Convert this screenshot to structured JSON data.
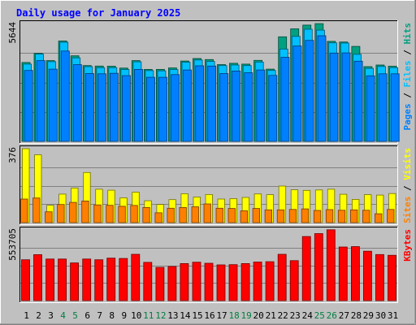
{
  "chart_data": {
    "type": "bar",
    "title": "Daily usage for January 2025",
    "categories": [
      "1",
      "2",
      "3",
      "4",
      "5",
      "6",
      "7",
      "8",
      "9",
      "10",
      "11",
      "12",
      "13",
      "14",
      "15",
      "16",
      "17",
      "18",
      "19",
      "20",
      "21",
      "22",
      "23",
      "24",
      "25",
      "26",
      "27",
      "28",
      "29",
      "30",
      "31"
    ],
    "weekend_days": [
      "4",
      "5",
      "11",
      "12",
      "18",
      "19",
      "25",
      "26"
    ],
    "panels": [
      {
        "id": "hits",
        "ymax_label": "5644",
        "ymax": 5644,
        "series": [
          {
            "name": "Hits",
            "color": "#00a080",
            "values": [
              3780,
              4220,
              3870,
              4810,
              4100,
              3630,
              3610,
              3600,
              3510,
              3870,
              3450,
              3450,
              3520,
              3850,
              3970,
              3920,
              3680,
              3740,
              3700,
              3880,
              3460,
              5010,
              5390,
              5570,
              5640,
              4790,
              4760,
              4550,
              3580,
              3660,
              3600
            ]
          },
          {
            "name": "Files",
            "color": "#00c0ff",
            "values": [
              3700,
              4180,
              3820,
              4750,
              4000,
              3580,
              3530,
              3530,
              3440,
              3810,
              3390,
              3380,
              3440,
              3790,
              3900,
              3830,
              3630,
              3660,
              3630,
              3800,
              3400,
              4420,
              5030,
              5370,
              5330,
              4720,
              4710,
              4170,
              3500,
              3590,
              3530
            ]
          },
          {
            "name": "Pages",
            "color": "#0080ff",
            "values": [
              3400,
              3870,
              3460,
              4330,
              3680,
              3250,
              3240,
              3260,
              3150,
              3450,
              3070,
              3070,
              3200,
              3420,
              3620,
              3610,
              3250,
              3370,
              3290,
              3420,
              3160,
              4030,
              4570,
              4840,
              5060,
              4230,
              4240,
              3840,
              3140,
              3240,
              3240
            ]
          }
        ],
        "axis_title_parts": [
          {
            "text": "Pages",
            "color": "#0080ff"
          },
          {
            "text": " / ",
            "color": "#000000"
          },
          {
            "text": "Files",
            "color": "#00c0ff"
          },
          {
            "text": " / ",
            "color": "#000000"
          },
          {
            "text": "Hits",
            "color": "#00a080"
          }
        ]
      },
      {
        "id": "visits",
        "ymax_label": "376",
        "ymax": 376,
        "series": [
          {
            "name": "Visits",
            "color": "#ffff00",
            "values": [
              376,
              345,
              88,
              145,
              176,
              255,
              170,
              165,
              126,
              155,
              111,
              92,
              117,
              147,
              130,
              143,
              120,
              122,
              128,
              146,
              142,
              186,
              167,
              164,
              166,
              170,
              144,
              118,
              142,
              140,
              148
            ]
          },
          {
            "name": "Sites",
            "color": "#ff8000",
            "values": [
              120,
              125,
              55,
              92,
              103,
              110,
              90,
              88,
              83,
              87,
              77,
              50,
              73,
              77,
              80,
              95,
              73,
              72,
              60,
              72,
              65,
              65,
              67,
              70,
              62,
              66,
              63,
              65,
              63,
              45,
              67
            ]
          }
        ],
        "axis_title_parts": [
          {
            "text": "Sites",
            "color": "#ff8000"
          },
          {
            "text": " / ",
            "color": "#000000"
          },
          {
            "text": "Visits",
            "color": "#ffff00"
          }
        ]
      },
      {
        "id": "kbytes",
        "ymax_label": "553705",
        "ymax": 553705,
        "series": [
          {
            "name": "KBytes",
            "color": "#ff0000",
            "values": [
              320000,
              360000,
              326000,
              326000,
              295000,
              326000,
              320000,
              333000,
              330000,
              363000,
              300000,
              260000,
              267000,
              290000,
              301000,
              293000,
              280000,
              282000,
              290000,
              302000,
              305000,
              363000,
              313000,
              502000,
              525000,
              555000,
              420000,
              423000,
              387000,
              361000,
              355000
            ]
          }
        ],
        "axis_title_parts": [
          {
            "text": "KBytes",
            "color": "#ff0000"
          }
        ]
      }
    ]
  }
}
